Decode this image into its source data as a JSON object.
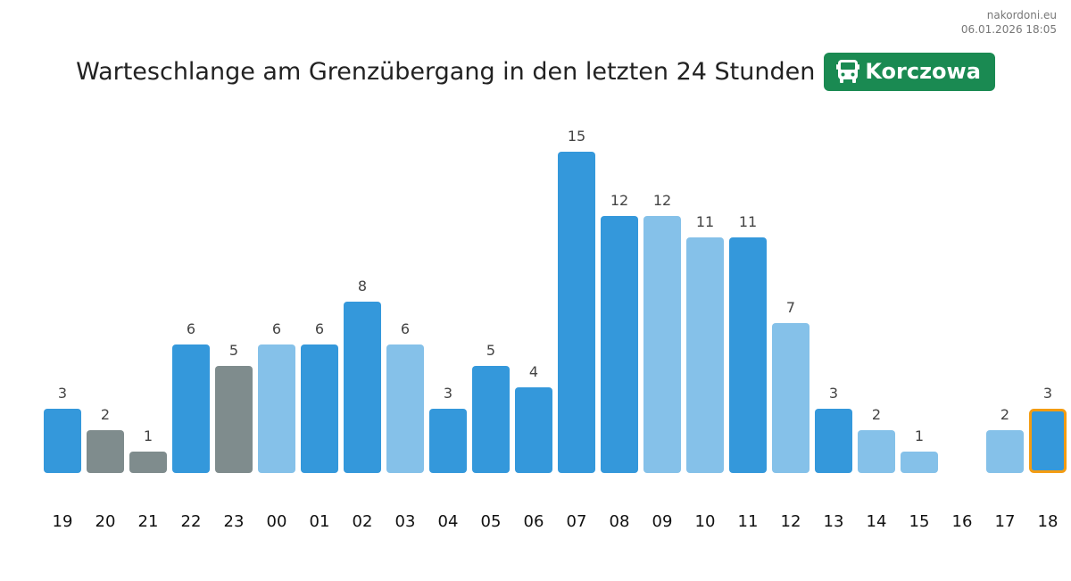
{
  "source": "nakordoni.eu",
  "timestamp": "06.01.2026 18:05",
  "title": "Warteschlange am Grenzübergang in den letzten 24 Stunden",
  "badge": {
    "label": "Korczowa",
    "icon": "bus-icon",
    "color": "#1a8a52"
  },
  "colors": {
    "dark": "#3498db",
    "light": "#85c1e9",
    "gray": "#7f8c8d",
    "highlight_border": "#f39c12"
  },
  "chart_data": {
    "type": "bar",
    "title": "Warteschlange am Grenzübergang in den letzten 24 Stunden",
    "xlabel": "",
    "ylabel": "",
    "ylim": [
      0,
      15
    ],
    "categories": [
      "19",
      "20",
      "21",
      "22",
      "23",
      "00",
      "01",
      "02",
      "03",
      "04",
      "05",
      "06",
      "07",
      "08",
      "09",
      "10",
      "11",
      "12",
      "13",
      "14",
      "15",
      "16",
      "17",
      "18"
    ],
    "values": [
      3,
      2,
      1,
      6,
      5,
      6,
      6,
      8,
      6,
      3,
      5,
      4,
      15,
      12,
      12,
      11,
      11,
      7,
      3,
      2,
      1,
      0,
      2,
      3
    ],
    "bar_styles": [
      "dark",
      "gray",
      "gray",
      "dark",
      "gray",
      "light",
      "dark",
      "dark",
      "light",
      "dark",
      "dark",
      "dark",
      "dark",
      "dark",
      "light",
      "light",
      "dark",
      "light",
      "dark",
      "light",
      "light",
      "none",
      "light",
      "dark"
    ],
    "highlight_index": 23,
    "grid": false
  }
}
